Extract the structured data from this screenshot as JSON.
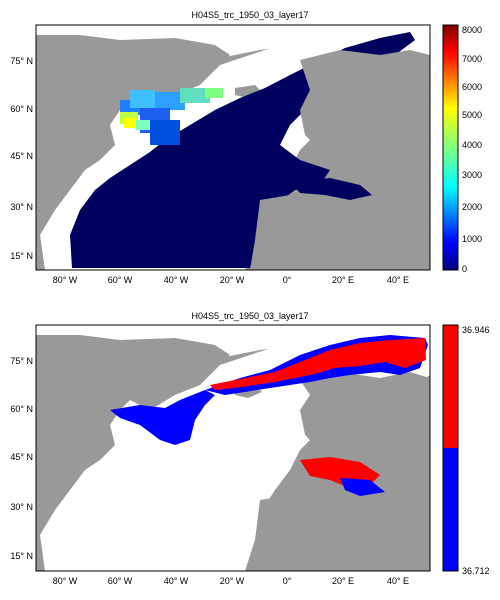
{
  "colors": {
    "land": "#999999",
    "no_data": "#ffffff",
    "deep": "#00005f",
    "red": "#ff0000",
    "blue": "#0000ff",
    "jet": [
      "#00007f",
      "#0000ff",
      "#007fff",
      "#00ffff",
      "#7fff7f",
      "#ffff00",
      "#ff7f00",
      "#ff0000",
      "#7f0000"
    ]
  },
  "maps": [
    {
      "title": "H04S5_trc_1950_03_layer17",
      "colormap": "jet",
      "colorbar_ticks": [
        "0",
        "1000",
        "2000",
        "3000",
        "4000",
        "5000",
        "6000",
        "7000",
        "8000"
      ],
      "lat_labels": [
        "75° N",
        "60° N",
        "45° N",
        "30° N",
        "15° N"
      ],
      "lon_labels": [
        "80° W",
        "60° W",
        "40° W",
        "20° W",
        "0°",
        "20° E",
        "40° E"
      ]
    },
    {
      "title": "H04S5_trc_1950_03_layer17",
      "colormap": "red-blue",
      "colorbar_ticks": [
        "36.946",
        "36.712"
      ],
      "lat_labels": [
        "75° N",
        "60° N",
        "45° N",
        "30° N",
        "15° N"
      ],
      "lon_labels": [
        "80° W",
        "60° W",
        "40° W",
        "20° W",
        "0°",
        "20° E",
        "40° E"
      ]
    }
  ]
}
